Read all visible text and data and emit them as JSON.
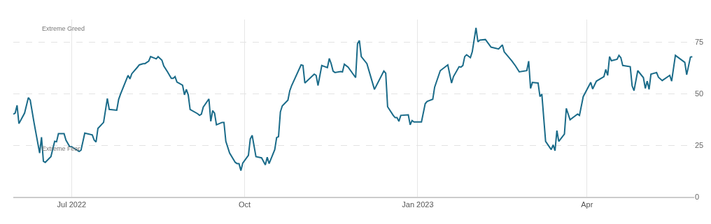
{
  "chart_data": {
    "type": "line",
    "x": [
      "2022-05-31",
      "2022-06-01",
      "2022-06-02",
      "2022-06-03",
      "2022-06-06",
      "2022-06-08",
      "2022-06-09",
      "2022-06-11",
      "2022-06-14",
      "2022-06-15",
      "2022-06-16",
      "2022-06-17",
      "2022-06-20",
      "2022-06-22",
      "2022-06-23",
      "2022-06-24",
      "2022-06-27",
      "2022-06-28",
      "2022-06-30",
      "2022-07-01",
      "2022-07-05",
      "2022-07-06",
      "2022-07-08",
      "2022-07-12",
      "2022-07-13",
      "2022-07-14",
      "2022-07-15",
      "2022-07-18",
      "2022-07-20",
      "2022-07-21",
      "2022-07-25",
      "2022-07-26",
      "2022-07-27",
      "2022-07-31",
      "2022-08-01",
      "2022-08-02",
      "2022-08-05",
      "2022-08-06",
      "2022-08-08",
      "2022-08-09",
      "2022-08-11",
      "2022-08-12",
      "2022-08-15",
      "2022-08-16",
      "2022-08-18",
      "2022-08-19",
      "2022-08-21",
      "2022-08-23",
      "2022-08-24",
      "2022-08-25",
      "2022-08-26",
      "2022-08-29",
      "2022-08-30",
      "2022-08-31",
      "2022-09-01",
      "2022-09-02",
      "2022-09-06",
      "2022-09-07",
      "2022-09-08",
      "2022-09-09",
      "2022-09-12",
      "2022-09-13",
      "2022-09-14",
      "2022-09-15",
      "2022-09-16",
      "2022-09-19",
      "2022-09-20",
      "2022-09-21",
      "2022-09-23",
      "2022-09-26",
      "2022-09-27",
      "2022-09-28",
      "2022-09-29",
      "2022-09-30",
      "2022-10-03",
      "2022-10-04",
      "2022-10-05",
      "2022-10-07",
      "2022-10-10",
      "2022-10-12",
      "2022-10-13",
      "2022-10-14",
      "2022-10-17",
      "2022-10-18",
      "2022-10-19",
      "2022-10-20",
      "2022-10-21",
      "2022-10-24",
      "2022-10-25",
      "2022-10-26",
      "2022-10-31",
      "2022-11-01",
      "2022-11-02",
      "2022-11-07",
      "2022-11-08",
      "2022-11-09",
      "2022-11-11",
      "2022-11-14",
      "2022-11-15",
      "2022-11-16",
      "2022-11-17",
      "2022-11-18",
      "2022-11-21",
      "2022-11-22",
      "2022-11-23",
      "2022-11-25",
      "2022-11-29",
      "2022-11-30",
      "2022-12-01",
      "2022-12-02",
      "2022-12-05",
      "2022-12-09",
      "2022-12-14",
      "2022-12-15",
      "2022-12-16",
      "2022-12-19",
      "2022-12-20",
      "2022-12-21",
      "2022-12-22",
      "2022-12-23",
      "2022-12-27",
      "2022-12-28",
      "2022-12-29",
      "2022-12-30",
      "2023-01-03",
      "2023-01-05",
      "2023-01-06",
      "2023-01-09",
      "2023-01-10",
      "2023-01-13",
      "2023-01-17",
      "2023-01-19",
      "2023-01-20",
      "2023-01-23",
      "2023-01-24",
      "2023-01-25",
      "2023-01-26",
      "2023-01-27",
      "2023-01-29",
      "2023-01-30",
      "2023-02-01",
      "2023-02-02",
      "2023-02-03",
      "2023-02-06",
      "2023-02-09",
      "2023-02-13",
      "2023-02-15",
      "2023-02-16",
      "2023-02-20",
      "2023-02-22",
      "2023-02-24",
      "2023-02-28",
      "2023-03-01",
      "2023-03-02",
      "2023-03-03",
      "2023-03-06",
      "2023-03-07",
      "2023-03-08",
      "2023-03-10",
      "2023-03-13",
      "2023-03-14",
      "2023-03-15",
      "2023-03-16",
      "2023-03-17",
      "2023-03-20",
      "2023-03-21",
      "2023-03-23",
      "2023-03-27",
      "2023-03-28",
      "2023-03-30",
      "2023-04-03",
      "2023-04-04",
      "2023-04-06",
      "2023-04-10",
      "2023-04-11",
      "2023-04-12",
      "2023-04-13",
      "2023-04-14",
      "2023-04-17",
      "2023-04-18",
      "2023-04-19",
      "2023-04-20",
      "2023-04-24",
      "2023-04-25",
      "2023-04-26",
      "2023-04-28",
      "2023-05-01",
      "2023-05-02",
      "2023-05-03",
      "2023-05-04",
      "2023-05-05",
      "2023-05-08",
      "2023-05-09",
      "2023-05-11",
      "2023-05-15",
      "2023-05-16",
      "2023-05-18",
      "2023-05-23",
      "2023-05-24",
      "2023-05-26",
      "2023-05-27"
    ],
    "values": [
      40.1,
      40.6,
      44.4,
      35.5,
      40.6,
      48.1,
      46.9,
      36.1,
      21.2,
      28.9,
      17.2,
      16.7,
      19.5,
      26.9,
      26.7,
      30.6,
      30.6,
      27.5,
      24.3,
      24.3,
      22.0,
      22.6,
      30.9,
      30.0,
      27.5,
      26.6,
      33.2,
      36.1,
      47.7,
      42.4,
      42.0,
      47.2,
      49.8,
      58.9,
      57.2,
      59.7,
      62.9,
      64.0,
      64.6,
      64.6,
      65.8,
      68.0,
      66.9,
      68.0,
      66.3,
      63.5,
      60.6,
      57.5,
      57.5,
      58.3,
      55.7,
      54.1,
      49.5,
      52.1,
      49.5,
      42.4,
      40.3,
      39.5,
      40.1,
      43.5,
      47.5,
      36.6,
      41.8,
      40.6,
      34.9,
      36.1,
      36.1,
      26.9,
      21.2,
      16.7,
      16.1,
      16.1,
      12.7,
      16.4,
      20.1,
      28.1,
      29.8,
      19.5,
      18.9,
      15.5,
      19.2,
      16.1,
      22.9,
      28.7,
      29.2,
      41.2,
      44.1,
      46.9,
      51.5,
      54.0,
      64.0,
      63.7,
      55.2,
      59.5,
      58.9,
      54.0,
      63.7,
      62.7,
      67.1,
      64.6,
      61.0,
      60.3,
      60.8,
      60.6,
      64.3,
      62.9,
      57.8,
      74.3,
      75.8,
      68.0,
      64.6,
      52.1,
      61.0,
      60.0,
      43.7,
      39.5,
      38.4,
      38.4,
      36.6,
      39.5,
      39.8,
      34.9,
      37.0,
      36.3,
      36.3,
      45.2,
      46.3,
      47.3,
      53.2,
      61.2,
      64.0,
      55.2,
      58.3,
      63.1,
      62.9,
      63.7,
      68.0,
      68.9,
      67.5,
      70.3,
      82.0,
      75.2,
      76.0,
      76.3,
      72.6,
      71.7,
      73.7,
      70.3,
      66.0,
      63.5,
      60.6,
      61.2,
      65.8,
      52.6,
      55.5,
      55.2,
      48.6,
      49.8,
      26.9,
      22.9,
      25.2,
      22.4,
      32.1,
      26.9,
      30.4,
      42.9,
      37.4,
      40.1,
      39.5,
      48.6,
      55.5,
      52.3,
      56.1,
      58.3,
      61.8,
      58.9,
      68.0,
      66.0,
      66.7,
      68.6,
      67.5,
      63.7,
      63.1,
      53.8,
      51.5,
      61.2,
      57.8,
      52.6,
      56.1,
      52.1,
      59.5,
      60.3,
      58.0,
      56.4,
      58.9,
      56.1,
      68.6,
      65.2,
      59.2,
      67.8,
      68.0
    ],
    "color": "#1a6b89",
    "xlim": [
      "2022-05-31",
      "2023-05-28"
    ],
    "xticks": [
      {
        "value": "2022-07-01",
        "label": "Jul 2022"
      },
      {
        "value": "2022-10-01",
        "label": "Oct"
      },
      {
        "value": "2023-01-01",
        "label": "Jan 2023"
      },
      {
        "value": "2023-04-01",
        "label": "Apr"
      }
    ],
    "ylim": [
      0,
      86
    ],
    "yticks": [
      0,
      25,
      50,
      75
    ],
    "grid": true,
    "line_style": "solid",
    "annotations": [
      "Extreme Greed",
      "Extreme Fear"
    ]
  }
}
